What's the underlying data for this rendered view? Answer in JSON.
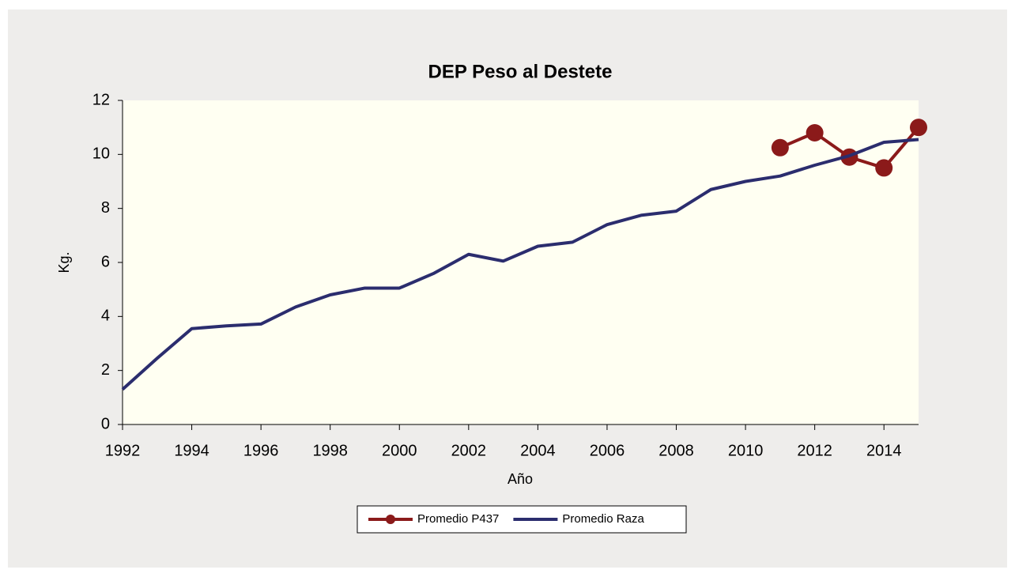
{
  "chart_data": {
    "type": "line",
    "title": "DEP Peso al Destete",
    "xlabel": "Año",
    "ylabel": "Kg.",
    "x": [
      1992,
      1993,
      1994,
      1995,
      1996,
      1997,
      1998,
      1999,
      2000,
      2001,
      2002,
      2003,
      2004,
      2005,
      2006,
      2007,
      2008,
      2009,
      2010,
      2011,
      2012,
      2013,
      2014,
      2015
    ],
    "series": [
      {
        "name": "Promedio P437",
        "color": "#8b1a1a",
        "marker": true,
        "values": [
          null,
          null,
          null,
          null,
          null,
          null,
          null,
          null,
          null,
          null,
          null,
          null,
          null,
          null,
          null,
          null,
          null,
          null,
          null,
          10.25,
          10.8,
          9.9,
          9.5,
          11.0
        ]
      },
      {
        "name": "Promedio Raza",
        "color": "#2b2d6e",
        "marker": false,
        "values": [
          1.3,
          2.45,
          3.55,
          3.65,
          3.72,
          4.35,
          4.8,
          5.05,
          5.05,
          5.6,
          6.3,
          6.05,
          6.6,
          6.75,
          7.4,
          7.75,
          7.9,
          8.7,
          9.0,
          9.2,
          9.6,
          9.95,
          10.45,
          10.55
        ]
      }
    ],
    "xlim": [
      1992,
      2015
    ],
    "xticks": [
      1992,
      1994,
      1996,
      1998,
      2000,
      2002,
      2004,
      2006,
      2008,
      2010,
      2012,
      2014
    ],
    "ylim": [
      0,
      12
    ],
    "yticks": [
      0,
      2,
      4,
      6,
      8,
      10,
      12
    ],
    "legend": "bottom"
  }
}
